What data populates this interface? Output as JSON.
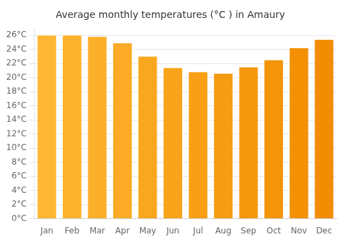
{
  "chart_data": {
    "type": "bar",
    "title": "Average monthly temperatures (°C ) in Amaury",
    "categories": [
      "Jan",
      "Feb",
      "Mar",
      "Apr",
      "May",
      "Jun",
      "Jul",
      "Aug",
      "Sep",
      "Oct",
      "Nov",
      "Dec"
    ],
    "values": [
      26.0,
      26.0,
      25.8,
      24.9,
      23.0,
      21.4,
      20.8,
      20.6,
      21.5,
      22.5,
      24.2,
      25.4
    ],
    "colors": [
      "#ffb733",
      "#fdb32e",
      "#fcaf29",
      "#fbab25",
      "#faa720",
      "#f9a31b",
      "#f89f17",
      "#f69c12",
      "#f5980d",
      "#f49409",
      "#f39004",
      "#f28c00"
    ],
    "ylim": [
      0,
      27
    ],
    "yticks": [
      {
        "value": 0,
        "label": "0°C"
      },
      {
        "value": 2,
        "label": "2°C"
      },
      {
        "value": 4,
        "label": "4°C"
      },
      {
        "value": 6,
        "label": "6°C"
      },
      {
        "value": 8,
        "label": "8°C"
      },
      {
        "value": 10,
        "label": "10°C"
      },
      {
        "value": 12,
        "label": "12°C"
      },
      {
        "value": 14,
        "label": "14°C"
      },
      {
        "value": 16,
        "label": "16°C"
      },
      {
        "value": 18,
        "label": "18°C"
      },
      {
        "value": 20,
        "label": "20°C"
      },
      {
        "value": 22,
        "label": "22°C"
      },
      {
        "value": 24,
        "label": "24°C"
      },
      {
        "value": 26,
        "label": "26°C"
      }
    ],
    "grid": true
  }
}
